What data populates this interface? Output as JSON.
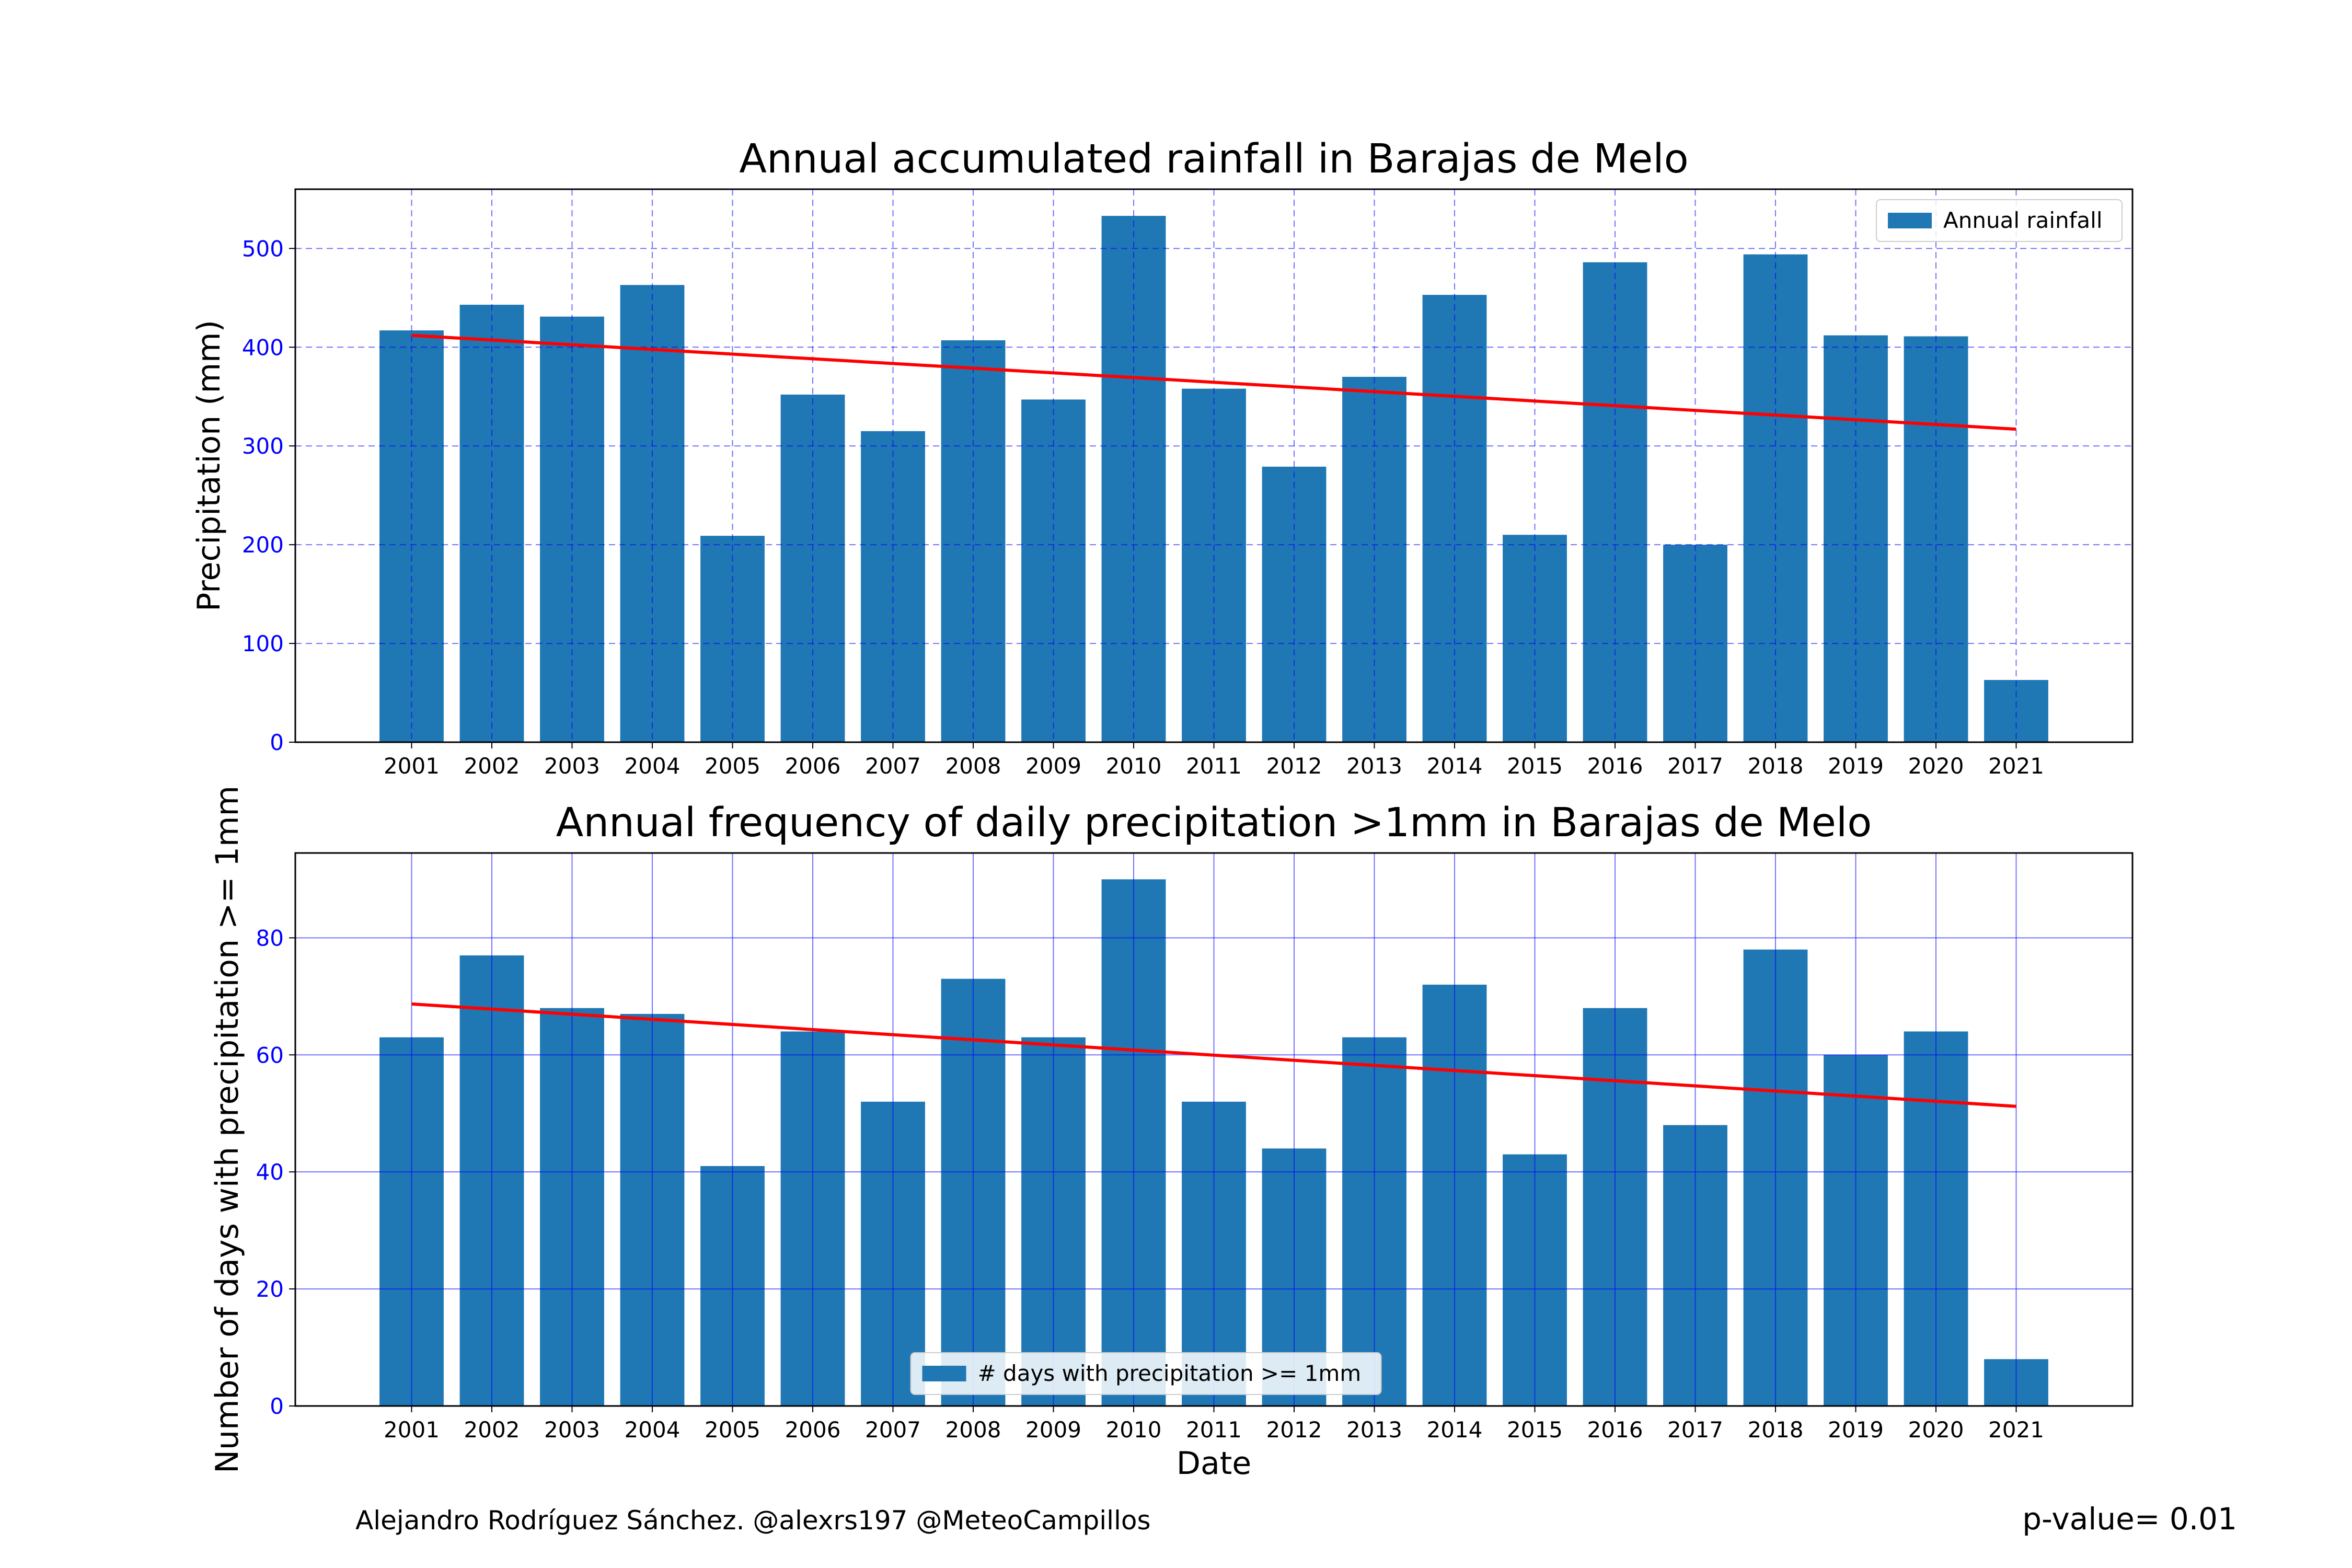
{
  "chart_data": [
    {
      "type": "bar",
      "title": "Annual accumulated rainfall in Barajas de Melo",
      "xlabel": "",
      "ylabel": "Precipitation (mm)",
      "categories": [
        "2001",
        "2002",
        "2003",
        "2004",
        "2005",
        "2006",
        "2007",
        "2008",
        "2009",
        "2010",
        "2011",
        "2012",
        "2013",
        "2014",
        "2015",
        "2016",
        "2017",
        "2018",
        "2019",
        "2020",
        "2021"
      ],
      "series": [
        {
          "name": "Annual rainfall",
          "values": [
            417,
            443,
            431,
            463,
            209,
            352,
            315,
            407,
            347,
            533,
            358,
            279,
            370,
            453,
            210,
            486,
            200,
            494,
            412,
            411,
            63
          ]
        }
      ],
      "trend": {
        "start": 412,
        "end": 317
      },
      "ylim": [
        0,
        560
      ],
      "yticks": [
        0,
        100,
        200,
        300,
        400,
        500
      ],
      "grid": "dashed",
      "legend": "top-right",
      "colors": {
        "bar": "#1f77b4",
        "trend": "#ff0000",
        "grid": "#0000ff"
      }
    },
    {
      "type": "bar",
      "title": "Annual frequency of daily precipitation >1mm in Barajas de Melo",
      "xlabel": "Date",
      "ylabel": "Number of days with precipitation >= 1mm",
      "categories": [
        "2001",
        "2002",
        "2003",
        "2004",
        "2005",
        "2006",
        "2007",
        "2008",
        "2009",
        "2010",
        "2011",
        "2012",
        "2013",
        "2014",
        "2015",
        "2016",
        "2017",
        "2018",
        "2019",
        "2020",
        "2021"
      ],
      "series": [
        {
          "name": "# days with precipitation >= 1mm",
          "values": [
            63,
            77,
            68,
            67,
            41,
            64,
            52,
            73,
            63,
            90,
            52,
            44,
            63,
            72,
            43,
            68,
            48,
            78,
            60,
            64,
            8
          ]
        }
      ],
      "trend": {
        "start": 68.7,
        "end": 51.2
      },
      "ylim": [
        0,
        94.5
      ],
      "yticks": [
        0,
        20,
        40,
        60,
        80
      ],
      "grid": "solid",
      "legend": "bottom-center",
      "colors": {
        "bar": "#1f77b4",
        "trend": "#ff0000",
        "grid": "#0000ff"
      }
    }
  ],
  "footer": {
    "credit": "Alejandro Rodríguez Sánchez. @alexrs197 @MeteoCampillos",
    "pvalue": "p-value= 0.01"
  }
}
